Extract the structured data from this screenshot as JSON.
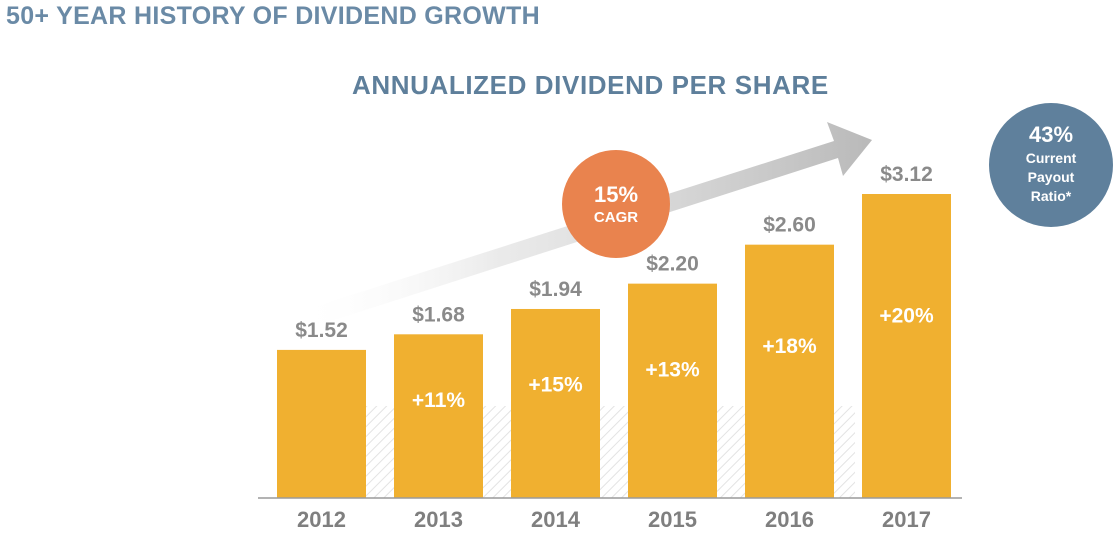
{
  "page_title": "50+ YEAR HISTORY OF DIVIDEND GROWTH",
  "colors": {
    "title": "#6a8aa6",
    "bar": "#f0b030",
    "cagr_badge": "#e9834e",
    "payout_badge": "#5f809c",
    "arrow": "#c8c8c8",
    "value_text": "#8a8a8a"
  },
  "cagr_badge": {
    "value": "15%",
    "label": "CAGR"
  },
  "payout_badge": {
    "value": "43%",
    "lines": [
      "Current",
      "Payout",
      "Ratio*"
    ]
  },
  "chart_data": {
    "type": "bar",
    "title": "ANNUALIZED DIVIDEND PER SHARE",
    "xlabel": "",
    "ylabel": "",
    "categories": [
      "2012",
      "2013",
      "2014",
      "2015",
      "2016",
      "2017"
    ],
    "values": [
      1.52,
      1.68,
      1.94,
      2.2,
      2.6,
      3.12
    ],
    "value_labels": [
      "$1.52",
      "$1.68",
      "$1.94",
      "$2.20",
      "$2.60",
      "$3.12"
    ],
    "growth_labels": [
      "",
      "+11%",
      "+15%",
      "+13%",
      "+18%",
      "+20%"
    ],
    "ylim": [
      0,
      3.12
    ],
    "grid": false,
    "legend": "none"
  }
}
